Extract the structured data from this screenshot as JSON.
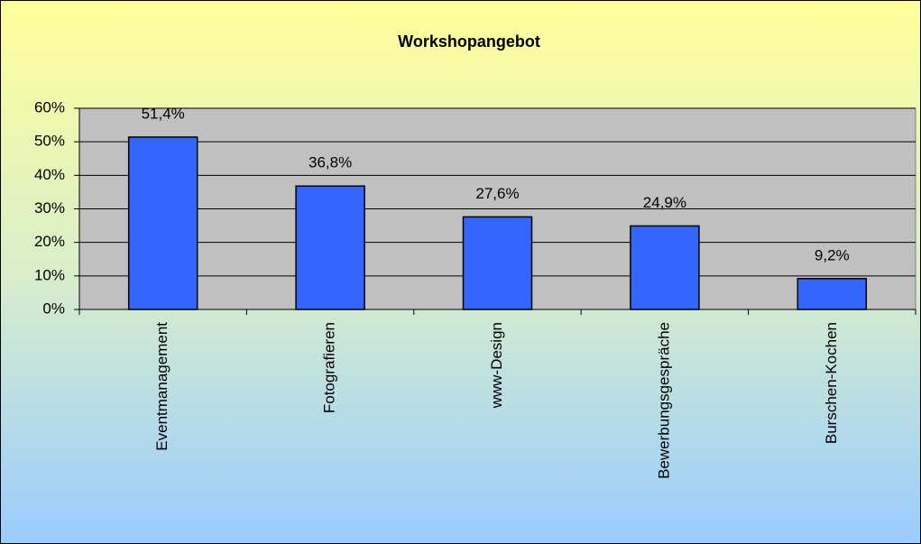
{
  "chart_data": {
    "type": "bar",
    "title": "Workshopangebot",
    "categories": [
      "Eventmanagement",
      "Fotografieren",
      "www-Design",
      "Bewerbungsgespräche",
      "Burschen-Kochen"
    ],
    "values": [
      51.4,
      36.8,
      27.6,
      24.9,
      9.2
    ],
    "value_labels": [
      "51,4%",
      "36,8%",
      "27,6%",
      "24,9%",
      "9,2%"
    ],
    "color": "#3366ff",
    "ylim": [
      0,
      60
    ],
    "yticks": [
      {
        "value": 0,
        "label": "0%"
      },
      {
        "value": 10,
        "label": "10%"
      },
      {
        "value": 20,
        "label": "20%"
      },
      {
        "value": 30,
        "label": "30%"
      },
      {
        "value": 40,
        "label": "40%"
      },
      {
        "value": 50,
        "label": "50%"
      },
      {
        "value": 60,
        "label": "60%"
      }
    ],
    "grid": true
  }
}
